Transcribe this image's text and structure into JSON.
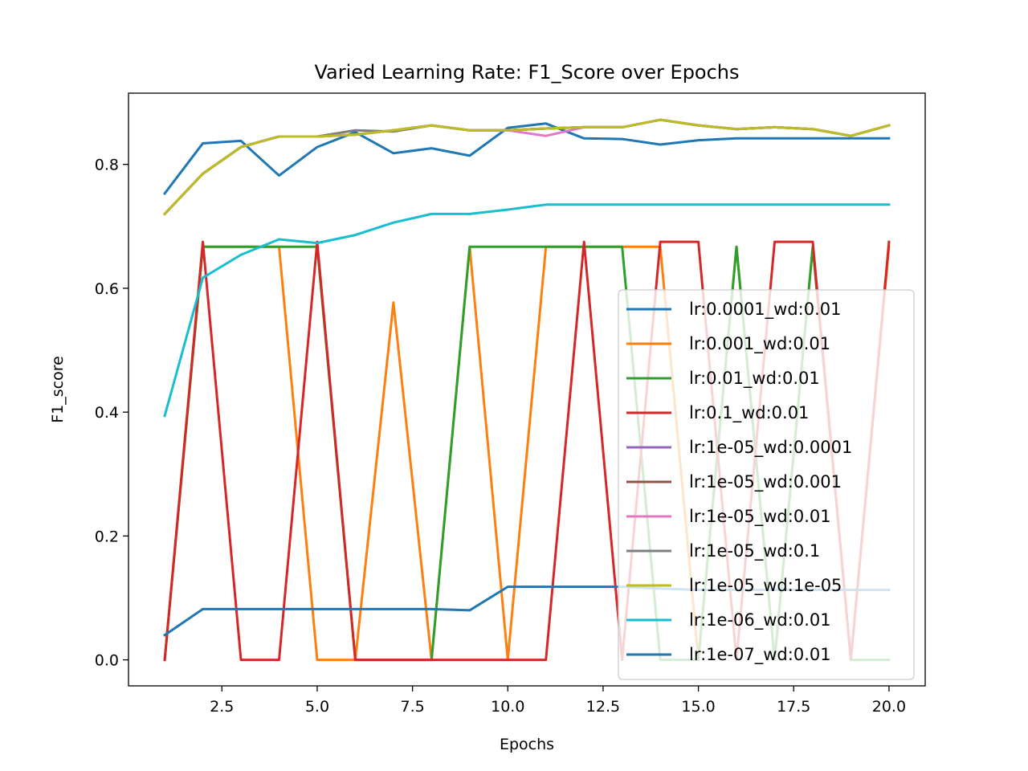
{
  "chart_data": {
    "type": "line",
    "title": "Varied Learning Rate: F1_Score over Epochs",
    "xlabel": "Epochs",
    "ylabel": "F1_score",
    "xlim": [
      0.05,
      20.95
    ],
    "ylim": [
      -0.042,
      0.915
    ],
    "xticks": [
      2.5,
      5.0,
      7.5,
      10.0,
      12.5,
      15.0,
      17.5,
      20.0
    ],
    "xtick_labels": [
      "2.5",
      "5.0",
      "7.5",
      "10.0",
      "12.5",
      "15.0",
      "17.5",
      "20.0"
    ],
    "yticks": [
      0.0,
      0.2,
      0.4,
      0.6,
      0.8
    ],
    "ytick_labels": [
      "0.0",
      "0.2",
      "0.4",
      "0.6",
      "0.8"
    ],
    "grid": false,
    "legend_position": "lower-right",
    "x": [
      1,
      2,
      3,
      4,
      5,
      6,
      7,
      8,
      9,
      10,
      11,
      12,
      13,
      14,
      15,
      16,
      17,
      18,
      19,
      20
    ],
    "series": [
      {
        "name": "lr:0.0001_wd:0.01",
        "color": "#1f77b4",
        "values": [
          0.753,
          0.834,
          0.838,
          0.782,
          0.828,
          0.852,
          0.818,
          0.826,
          0.814,
          0.859,
          0.866,
          0.842,
          0.841,
          0.832,
          0.839,
          0.842,
          0.842,
          0.842,
          0.842,
          0.842
        ]
      },
      {
        "name": "lr:0.001_wd:0.01",
        "color": "#ff7f0e",
        "values": [
          0.0,
          0.667,
          0.667,
          0.667,
          0.0,
          0.0,
          0.577,
          0.0,
          0.667,
          0.0,
          0.667,
          0.667,
          0.667,
          0.667,
          0.0,
          0.667,
          0.0,
          0.667,
          0.0,
          0.667
        ]
      },
      {
        "name": "lr:0.01_wd:0.01",
        "color": "#2ca02c",
        "values": [
          0.0,
          0.667,
          0.667,
          0.667,
          0.667,
          0.0,
          0.0,
          0.0,
          0.667,
          0.667,
          0.667,
          0.667,
          0.667,
          0.0,
          0.0,
          0.667,
          0.0,
          0.667,
          0.0,
          0.0
        ]
      },
      {
        "name": "lr:0.1_wd:0.01",
        "color": "#d62728",
        "values": [
          0.0,
          0.675,
          0.0,
          0.0,
          0.675,
          0.0,
          0.0,
          0.0,
          0.0,
          0.0,
          0.0,
          0.675,
          0.0,
          0.675,
          0.675,
          0.0,
          0.675,
          0.675,
          0.0,
          0.675
        ]
      },
      {
        "name": "lr:1e-05_wd:0.0001",
        "color": "#9467bd",
        "values": [
          0.72,
          0.785,
          0.828,
          0.845,
          0.845,
          0.848,
          0.855,
          0.863,
          0.855,
          0.855,
          0.858,
          0.86,
          0.86,
          0.872,
          0.863,
          0.857,
          0.86,
          0.857,
          0.846,
          0.863
        ]
      },
      {
        "name": "lr:1e-05_wd:0.001",
        "color": "#8c564b",
        "values": [
          0.72,
          0.785,
          0.828,
          0.845,
          0.845,
          0.848,
          0.855,
          0.863,
          0.855,
          0.855,
          0.858,
          0.86,
          0.86,
          0.872,
          0.863,
          0.857,
          0.86,
          0.857,
          0.846,
          0.863
        ]
      },
      {
        "name": "lr:1e-05_wd:0.01",
        "color": "#e377c2",
        "values": [
          0.72,
          0.785,
          0.828,
          0.845,
          0.845,
          0.848,
          0.855,
          0.863,
          0.855,
          0.855,
          0.846,
          0.86,
          0.86,
          0.872,
          0.863,
          0.857,
          0.86,
          0.857,
          0.846,
          0.863
        ]
      },
      {
        "name": "lr:1e-05_wd:0.1",
        "color": "#7f7f7f",
        "values": [
          0.72,
          0.785,
          0.828,
          0.845,
          0.845,
          0.855,
          0.853,
          0.863,
          0.855,
          0.855,
          0.858,
          0.86,
          0.86,
          0.872,
          0.863,
          0.857,
          0.86,
          0.857,
          0.846,
          0.863
        ]
      },
      {
        "name": "lr:1e-05_wd:1e-05",
        "color": "#bcbd22",
        "values": [
          0.72,
          0.785,
          0.828,
          0.845,
          0.845,
          0.848,
          0.855,
          0.863,
          0.855,
          0.855,
          0.858,
          0.86,
          0.86,
          0.872,
          0.863,
          0.857,
          0.86,
          0.857,
          0.846,
          0.863
        ]
      },
      {
        "name": "lr:1e-06_wd:0.01",
        "color": "#17becf",
        "values": [
          0.394,
          0.617,
          0.654,
          0.679,
          0.673,
          0.686,
          0.706,
          0.72,
          0.72,
          0.727,
          0.735,
          0.735,
          0.735,
          0.735,
          0.735,
          0.735,
          0.735,
          0.735,
          0.735,
          0.735
        ]
      },
      {
        "name": "lr:1e-07_wd:0.01",
        "color": "#1f77b4",
        "values": [
          0.04,
          0.082,
          0.082,
          0.082,
          0.082,
          0.082,
          0.082,
          0.082,
          0.08,
          0.118,
          0.118,
          0.118,
          0.118,
          0.115,
          0.113,
          0.113,
          0.113,
          0.113,
          0.113,
          0.113
        ]
      }
    ]
  }
}
